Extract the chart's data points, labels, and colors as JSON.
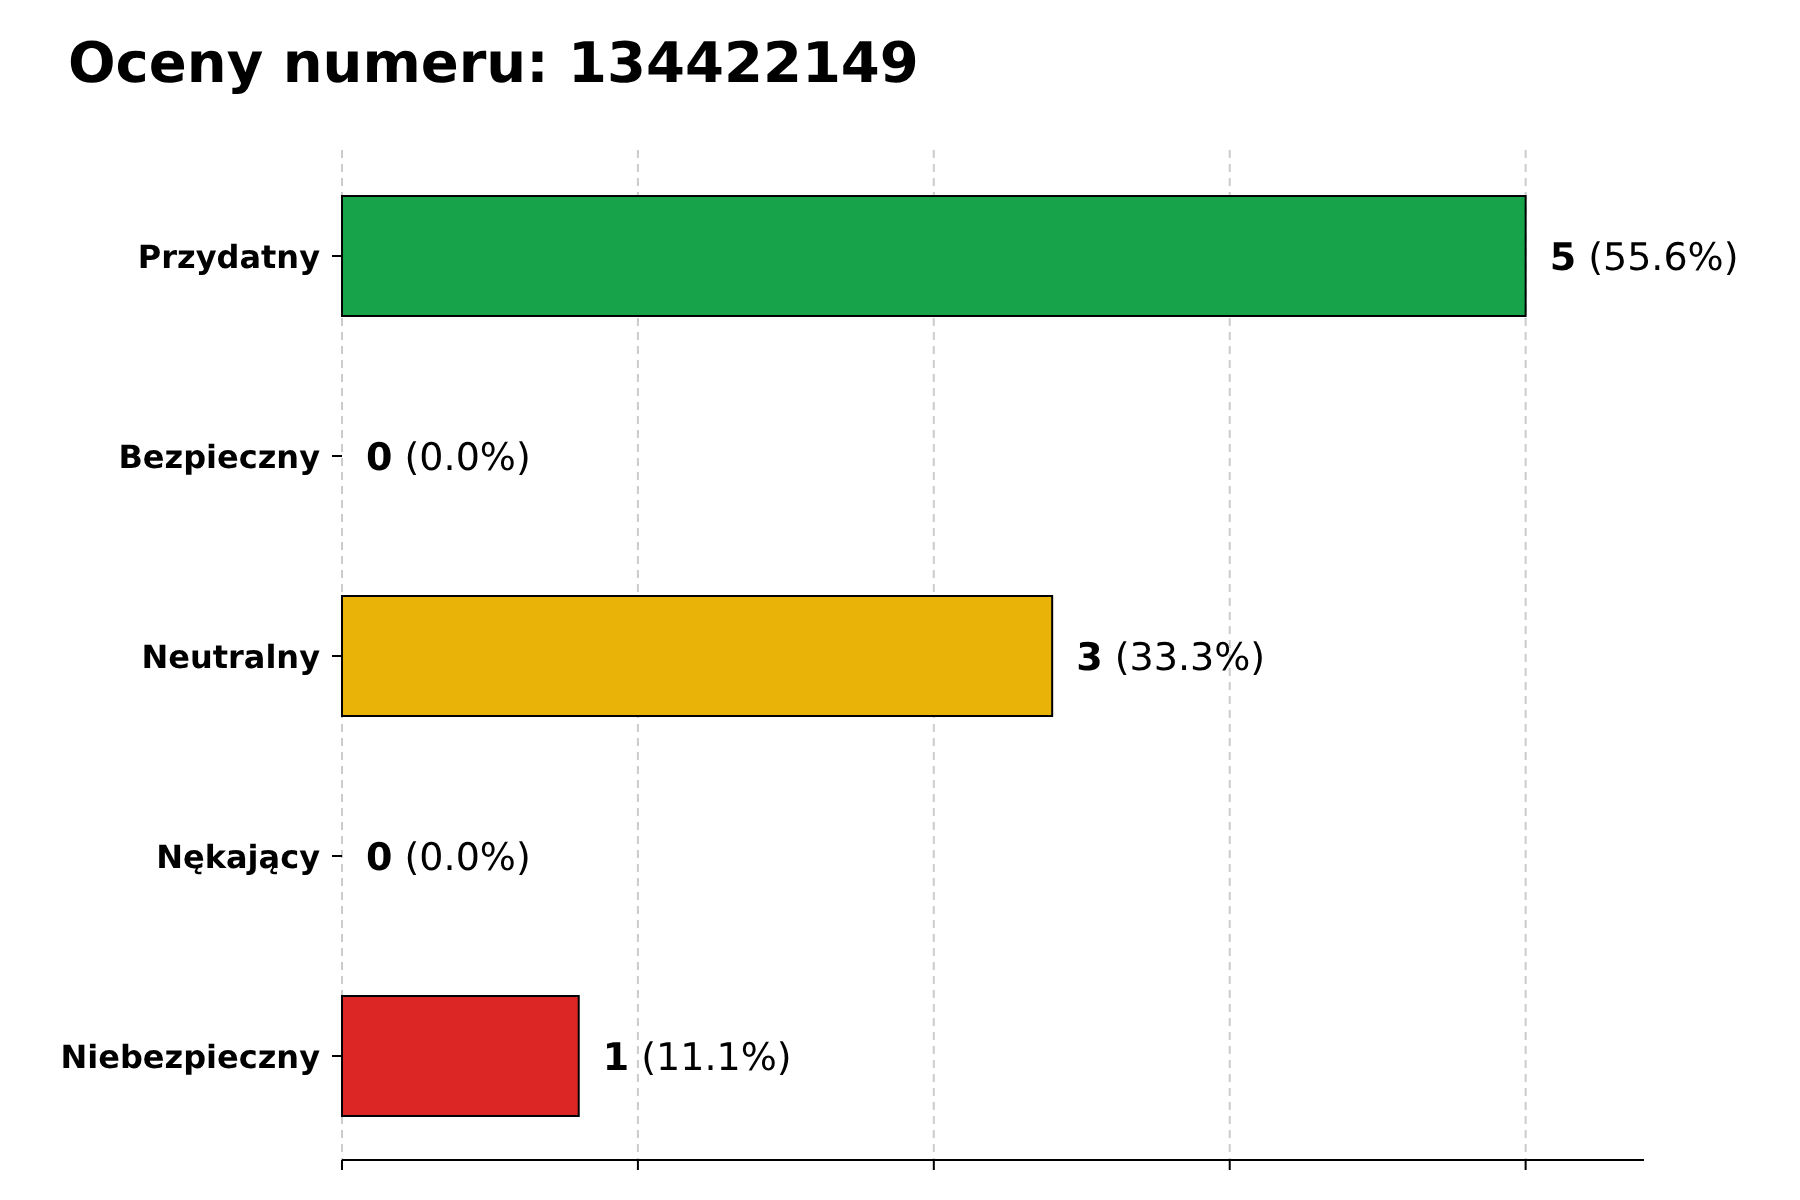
{
  "chart_data": {
    "type": "bar",
    "orientation": "horizontal",
    "title": "Oceny numeru: 134422149",
    "categories": [
      "Przydatny",
      "Bezpieczny",
      "Neutralny",
      "Nękający",
      "Niebezpieczny"
    ],
    "values": [
      5,
      0,
      3,
      0,
      1
    ],
    "colors": [
      "#17a34a",
      "#6b7280",
      "#e9b308",
      "#6b7280",
      "#dc2626"
    ],
    "value_labels": [
      "5 (55.6%)",
      "0 (0.0%)",
      "3 (33.3%)",
      "0 (0.0%)",
      "1 (11.1%)"
    ],
    "xlim": [
      0,
      5.5
    ],
    "xticks": [
      {
        "value": 0,
        "label": null
      },
      {
        "value": 1.25,
        "label": null
      },
      {
        "value": 2.5,
        "label": null
      },
      {
        "value": 3.75,
        "label": null
      },
      {
        "value": 5,
        "label": null
      }
    ],
    "tick_labels": "y",
    "grid": "x"
  }
}
